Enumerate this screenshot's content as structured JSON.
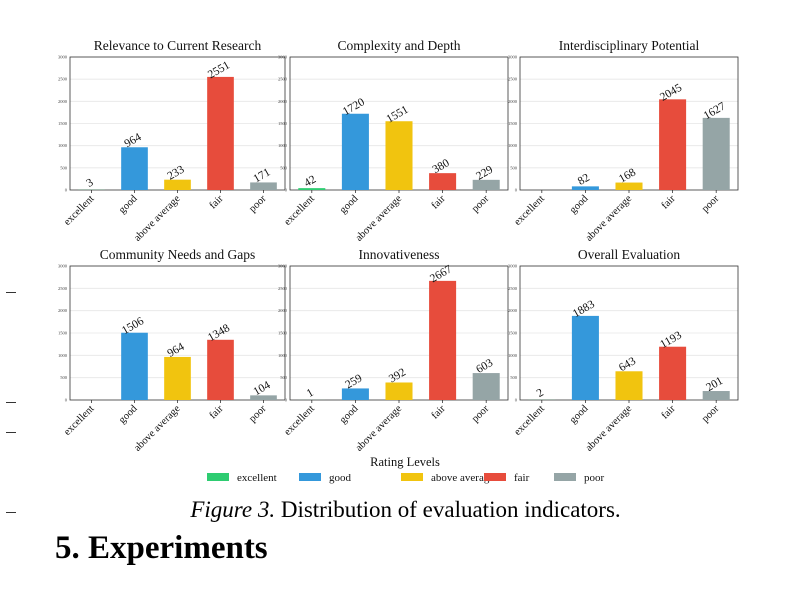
{
  "caption": {
    "lead": "Figure 3.",
    "text": "Distribution of evaluation indicators."
  },
  "section_heading": "5. Experiments",
  "legend_title": "Rating Levels",
  "colors": {
    "excellent": "#2ecc71",
    "good": "#3498db",
    "above average": "#f1c40f",
    "fair": "#e74c3c",
    "poor": "#95a5a6"
  },
  "chart_data": [
    {
      "type": "bar",
      "title": "Relevance to Current Research",
      "categories": [
        "excellent",
        "good",
        "above average",
        "fair",
        "poor"
      ],
      "values": [
        3,
        964,
        233,
        2551,
        171
      ],
      "ylim": [
        0,
        3000
      ],
      "yticks": [
        0,
        500,
        1000,
        1500,
        2000,
        2500,
        3000
      ]
    },
    {
      "type": "bar",
      "title": "Complexity and Depth",
      "categories": [
        "excellent",
        "good",
        "above average",
        "fair",
        "poor"
      ],
      "values": [
        42,
        1720,
        1551,
        380,
        229
      ],
      "ylim": [
        0,
        3000
      ],
      "yticks": [
        0,
        500,
        1000,
        1500,
        2000,
        2500,
        3000
      ]
    },
    {
      "type": "bar",
      "title": "Interdisciplinary Potential",
      "categories": [
        "excellent",
        "good",
        "above average",
        "fair",
        "poor"
      ],
      "values": [
        0,
        82,
        168,
        2045,
        1627
      ],
      "ylim": [
        0,
        3000
      ],
      "yticks": [
        0,
        500,
        1000,
        1500,
        2000,
        2500,
        3000
      ]
    },
    {
      "type": "bar",
      "title": "Community Needs and Gaps",
      "categories": [
        "excellent",
        "good",
        "above average",
        "fair",
        "poor"
      ],
      "values": [
        0,
        1506,
        964,
        1348,
        104
      ],
      "ylim": [
        0,
        3000
      ],
      "yticks": [
        0,
        500,
        1000,
        1500,
        2000,
        2500,
        3000
      ]
    },
    {
      "type": "bar",
      "title": "Innovativeness",
      "categories": [
        "excellent",
        "good",
        "above average",
        "fair",
        "poor"
      ],
      "values": [
        1,
        259,
        392,
        2667,
        603
      ],
      "ylim": [
        0,
        3000
      ],
      "yticks": [
        0,
        500,
        1000,
        1500,
        2000,
        2500,
        3000
      ]
    },
    {
      "type": "bar",
      "title": "Overall Evaluation",
      "categories": [
        "excellent",
        "good",
        "above average",
        "fair",
        "poor"
      ],
      "values": [
        2,
        1883,
        643,
        1193,
        201
      ],
      "ylim": [
        0,
        3000
      ],
      "yticks": [
        0,
        500,
        1000,
        1500,
        2000,
        2500,
        3000
      ]
    }
  ]
}
